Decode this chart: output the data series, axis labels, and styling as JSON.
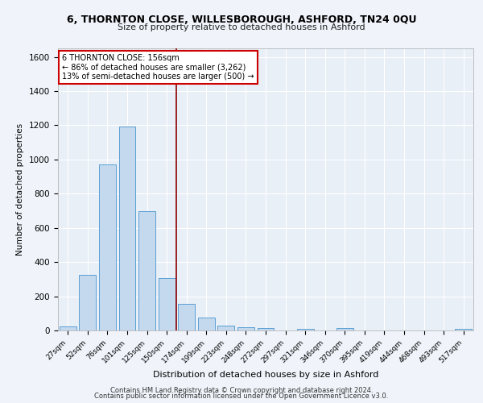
{
  "title": "6, THORNTON CLOSE, WILLESBOROUGH, ASHFORD, TN24 0QU",
  "subtitle": "Size of property relative to detached houses in Ashford",
  "xlabel": "Distribution of detached houses by size in Ashford",
  "ylabel": "Number of detached properties",
  "categories": [
    "27sqm",
    "52sqm",
    "76sqm",
    "101sqm",
    "125sqm",
    "150sqm",
    "174sqm",
    "199sqm",
    "223sqm",
    "248sqm",
    "272sqm",
    "297sqm",
    "321sqm",
    "346sqm",
    "370sqm",
    "395sqm",
    "419sqm",
    "444sqm",
    "468sqm",
    "493sqm",
    "517sqm"
  ],
  "values": [
    25,
    325,
    970,
    1195,
    700,
    305,
    155,
    75,
    30,
    20,
    12,
    0,
    10,
    0,
    15,
    0,
    0,
    0,
    0,
    0,
    10
  ],
  "bar_color": "#c5d9ee",
  "bar_edge_color": "#5a9fd4",
  "background_color": "#e8eff7",
  "grid_color": "#ffffff",
  "vline_x": 5.5,
  "vline_color": "#8b0000",
  "annotation_text": "6 THORNTON CLOSE: 156sqm\n← 86% of detached houses are smaller (3,262)\n13% of semi-detached houses are larger (500) →",
  "annotation_box_color": "#ffffff",
  "annotation_border_color": "#cc0000",
  "ylim": [
    0,
    1650
  ],
  "yticks": [
    0,
    200,
    400,
    600,
    800,
    1000,
    1200,
    1400,
    1600
  ],
  "footer1": "Contains HM Land Registry data © Crown copyright and database right 2024.",
  "footer2": "Contains public sector information licensed under the Open Government Licence v3.0.",
  "fig_bg": "#f0f4fa"
}
